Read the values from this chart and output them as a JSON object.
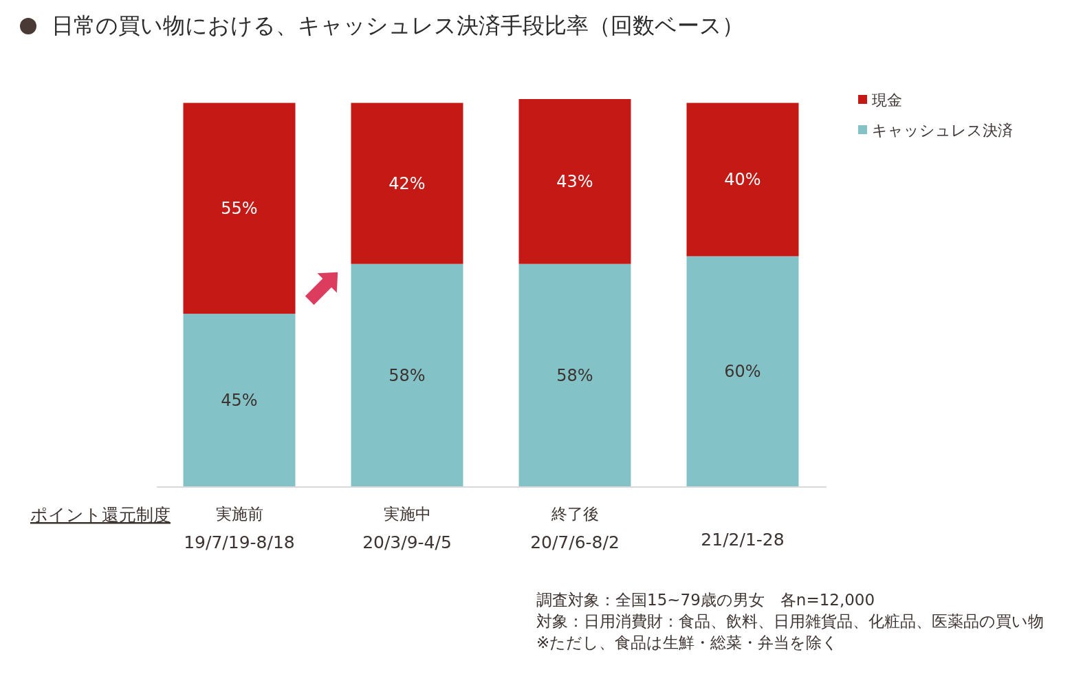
{
  "chart_data": {
    "type": "bar",
    "title": "日常の買い物における、キャッシュレス決済手段比率（回数ベース）",
    "categories": [
      "実施前\n19/7/19-8/18",
      "実施中\n20/3/9-4/5",
      "終了後\n20/7/6-8/2",
      "21/2/1-28"
    ],
    "series": [
      {
        "name": "キャッシュレス決済",
        "color": "#83c3c7",
        "values": [
          45,
          58,
          58,
          60
        ],
        "value_labels": [
          "45%",
          "58%",
          "58%",
          "60%"
        ]
      },
      {
        "name": "現金",
        "color": "#c41915",
        "values": [
          55,
          42,
          43,
          40
        ],
        "value_labels": [
          "55%",
          "42%",
          "43%",
          "40%"
        ]
      }
    ],
    "stacked": true,
    "legend": "top right",
    "annotations": [
      "ポイント還元制度",
      "調査対象：全国15~79歳の男女　各n=12,000",
      "対象：日用消費財：食品、飲料、日用雑貨品、化粧品、医薬品の買い物",
      "※ただし、食品は生鮮・総菜・弁当を除く"
    ]
  }
}
